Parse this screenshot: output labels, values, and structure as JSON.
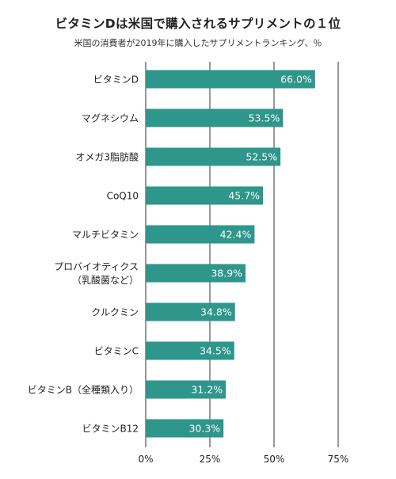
{
  "chart_data": {
    "type": "bar",
    "orientation": "horizontal",
    "title": "ビタミンDは米国で購入されるサプリメントの１位",
    "subtitle": "米国の消費者が2019年に購入したサプリメントランキング、％",
    "categories": [
      [
        "ビタミンD"
      ],
      [
        "マグネシウム"
      ],
      [
        "オメガ3脂肪酸"
      ],
      [
        "CoQ10"
      ],
      [
        "マルチビタミン"
      ],
      [
        "プロバイオティクス",
        "（乳酸菌など）"
      ],
      [
        "クルクミン"
      ],
      [
        "ビタミンC"
      ],
      [
        "ビタミンB（全種類入り）"
      ],
      [
        "ビタミンB12"
      ]
    ],
    "values": [
      66.0,
      53.5,
      52.5,
      45.7,
      42.4,
      38.9,
      34.8,
      34.5,
      31.2,
      30.3
    ],
    "data_labels": [
      "66.0%",
      "53.5%",
      "52.5%",
      "45.7%",
      "42.4%",
      "38.9%",
      "34.8%",
      "34.5%",
      "31.2%",
      "30.3%"
    ],
    "xticks": [
      0,
      25,
      50,
      75
    ],
    "xtick_labels": [
      "0%",
      "25%",
      "50%",
      "75%"
    ],
    "xlim": [
      0,
      75
    ],
    "grid": true,
    "legend": "none",
    "bar_color": "#2e968a",
    "label_color": "#ffffff"
  }
}
